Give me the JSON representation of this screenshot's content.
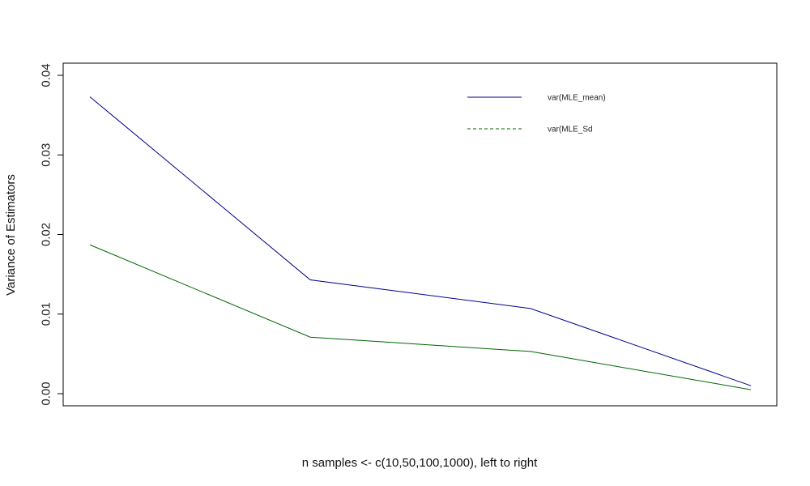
{
  "chart_data": {
    "type": "line",
    "title": "",
    "xlabel": "n samples <-  c(10,50,100,1000), left to right",
    "ylabel": "Variance of Estimators",
    "x": [
      1,
      2,
      3,
      4
    ],
    "xlim": [
      1,
      4
    ],
    "ylim": [
      0,
      0.04
    ],
    "yticks": [
      0.0,
      0.01,
      0.02,
      0.03,
      0.04
    ],
    "ytick_labels": [
      "0.00",
      "0.01",
      "0.02",
      "0.03",
      "0.04"
    ],
    "x_axis_shown": false,
    "grid": false,
    "legend_position": "top-right",
    "series": [
      {
        "name": "var(MLE_mean)",
        "color": "#00008b",
        "legend_dash": "solid",
        "values": [
          0.0373,
          0.0143,
          0.0107,
          0.001
        ]
      },
      {
        "name": "var(MLE_Sd",
        "color": "#006400",
        "legend_dash": "dashed",
        "values": [
          0.0187,
          0.0071,
          0.0053,
          0.0005
        ]
      }
    ]
  }
}
